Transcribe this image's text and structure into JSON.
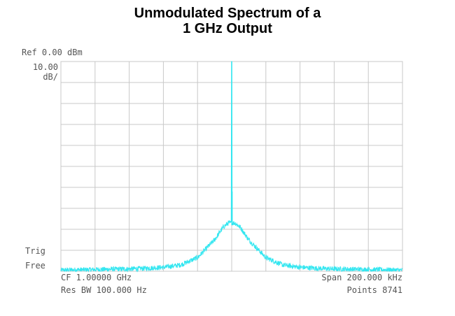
{
  "title_line1": "Unmodulated Spectrum of a",
  "title_line2": "1 GHz Output",
  "annotations": {
    "ref_level": "Ref 0.00 dBm",
    "scale_value": "10.00",
    "scale_unit": "dB/",
    "trig": "Trig",
    "free": "Free",
    "center_freq": "CF 1.00000 GHz",
    "res_bw": "Res BW 100.000  Hz",
    "span": "Span  200.000 kHz",
    "points": "Points 8741"
  },
  "colors": {
    "trace": "#33e6f0",
    "grid": "#c8c8c8",
    "text": "#555555"
  },
  "chart_data": {
    "type": "line",
    "xlabel": "",
    "ylabel": "",
    "x_unit": "kHz offset from center",
    "y_unit": "dBm",
    "xlim": [
      -100,
      100
    ],
    "ylim": [
      -100,
      0
    ],
    "grid": true,
    "x_divisions": 10,
    "y_divisions": 10,
    "series": [
      {
        "x": [
          -100,
          -90,
          -80,
          -70,
          -60,
          -50,
          -40,
          -30,
          -20,
          -10,
          -5,
          -2,
          0,
          2,
          5,
          10,
          20,
          30,
          40,
          50,
          60,
          70,
          80,
          90,
          100
        ],
        "values": [
          -99.5,
          -99.3,
          -99.2,
          -99.0,
          -98.9,
          -98.6,
          -98.1,
          -97,
          -93.5,
          -85,
          -79,
          -77,
          0,
          -77,
          -79,
          -85,
          -93.5,
          -97,
          -98.1,
          -98.6,
          -98.9,
          -99.0,
          -99.2,
          -99.3,
          -99.5
        ]
      }
    ]
  }
}
